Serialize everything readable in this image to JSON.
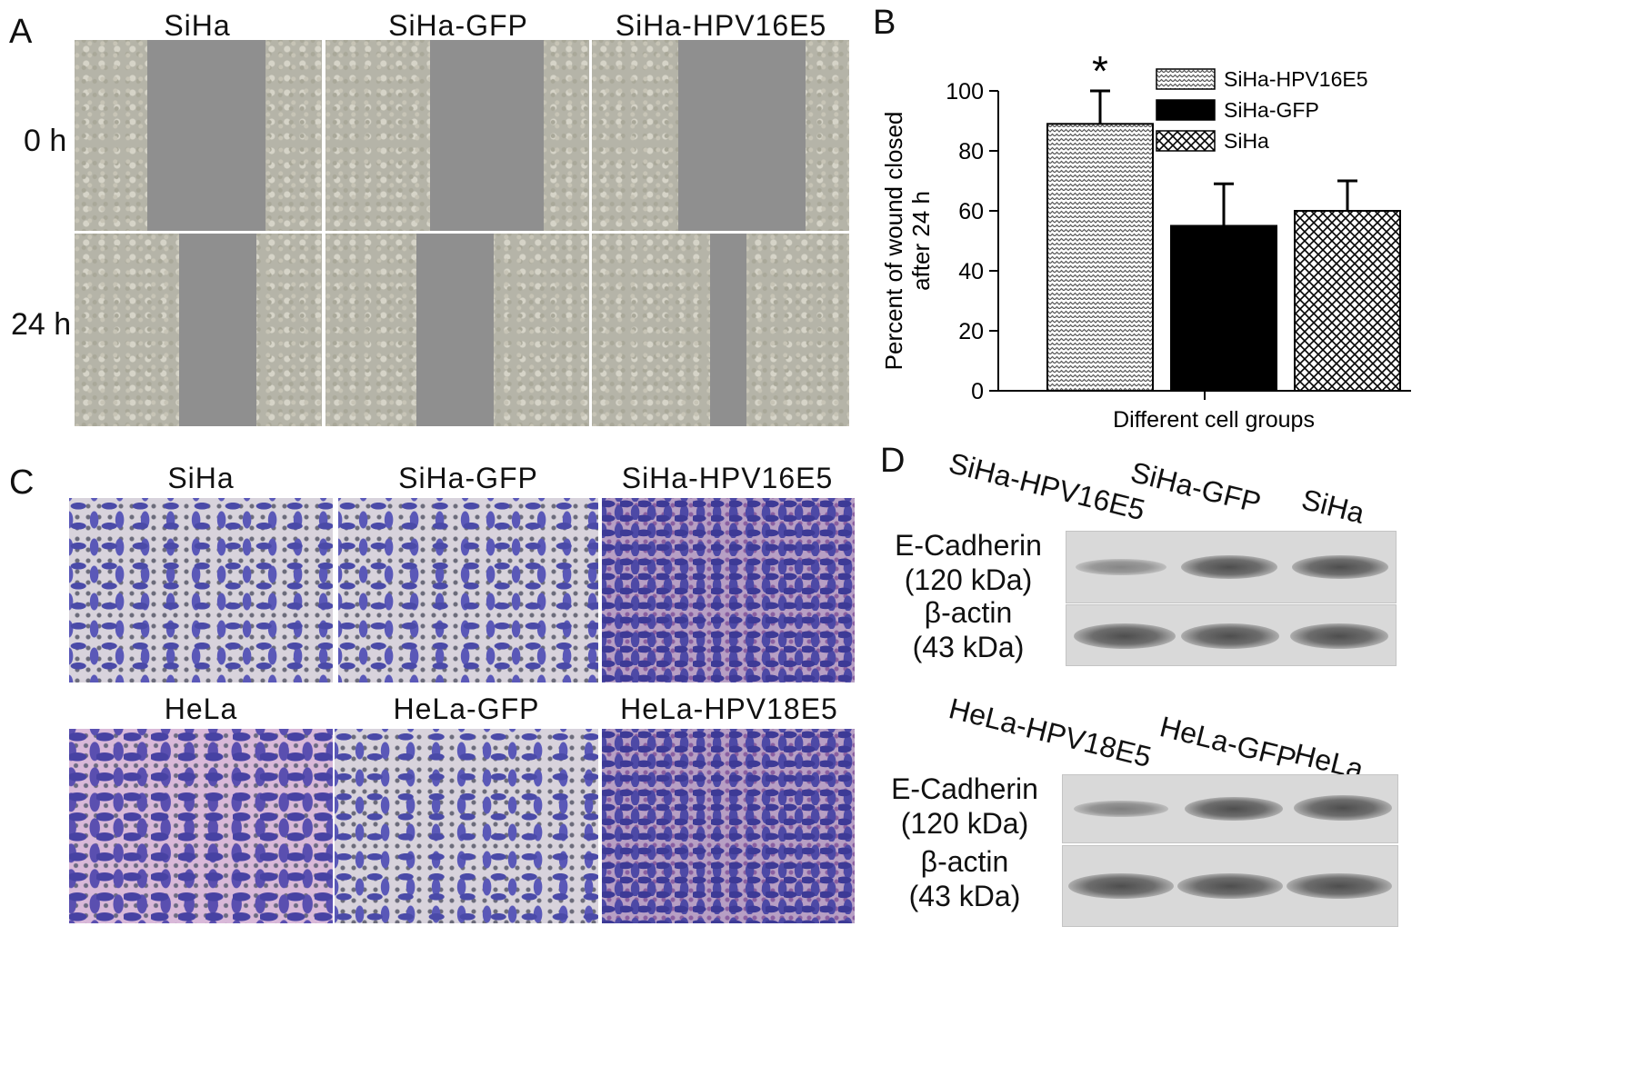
{
  "panel_a": {
    "letter": "A",
    "columns": [
      "SiHa",
      "SiHa-GFP",
      "SiHa-HPV16E5"
    ],
    "rows": [
      "0 h",
      "24 h"
    ]
  },
  "panel_b": {
    "letter": "B"
  },
  "chart_data": {
    "type": "bar",
    "categories": [
      "SiHa-HPV16E5",
      "SiHa-GFP",
      "SiHa"
    ],
    "values": [
      89,
      55,
      60
    ],
    "errors": [
      11,
      14,
      10
    ],
    "ylabel": "Percent of wound closed after 24 h",
    "ylabel_lines": [
      "Percent of wound closed",
      "after 24 h"
    ],
    "xlabel": "Different cell groups",
    "ylim": [
      0,
      100
    ],
    "yticks": [
      0,
      20,
      40,
      60,
      80,
      100
    ],
    "significance": [
      "*",
      "",
      ""
    ],
    "legend": {
      "placement": "top-right",
      "entries": [
        "SiHa-HPV16E5",
        "SiHa-GFP",
        "SiHa"
      ],
      "patterns": [
        "zigzag",
        "solid-black",
        "crosshatch"
      ]
    }
  },
  "panel_c": {
    "letter": "C",
    "top_titles": [
      "SiHa",
      "SiHa-GFP",
      "SiHa-HPV16E5"
    ],
    "bottom_titles": [
      "HeLa",
      "HeLa-GFP",
      "HeLa-HPV18E5"
    ]
  },
  "panel_d": {
    "letter": "D",
    "top_lanes": [
      "SiHa-HPV16E5",
      "SiHa-GFP",
      "SiHa"
    ],
    "bottom_lanes": [
      "HeLa-HPV18E5",
      "HeLa-GFP",
      "HeLa"
    ],
    "ecad_label": "E-Cadherin",
    "ecad_kda": "(120 kDa)",
    "actin_label": "β-actin",
    "actin_kda": "(43 kDa)"
  }
}
